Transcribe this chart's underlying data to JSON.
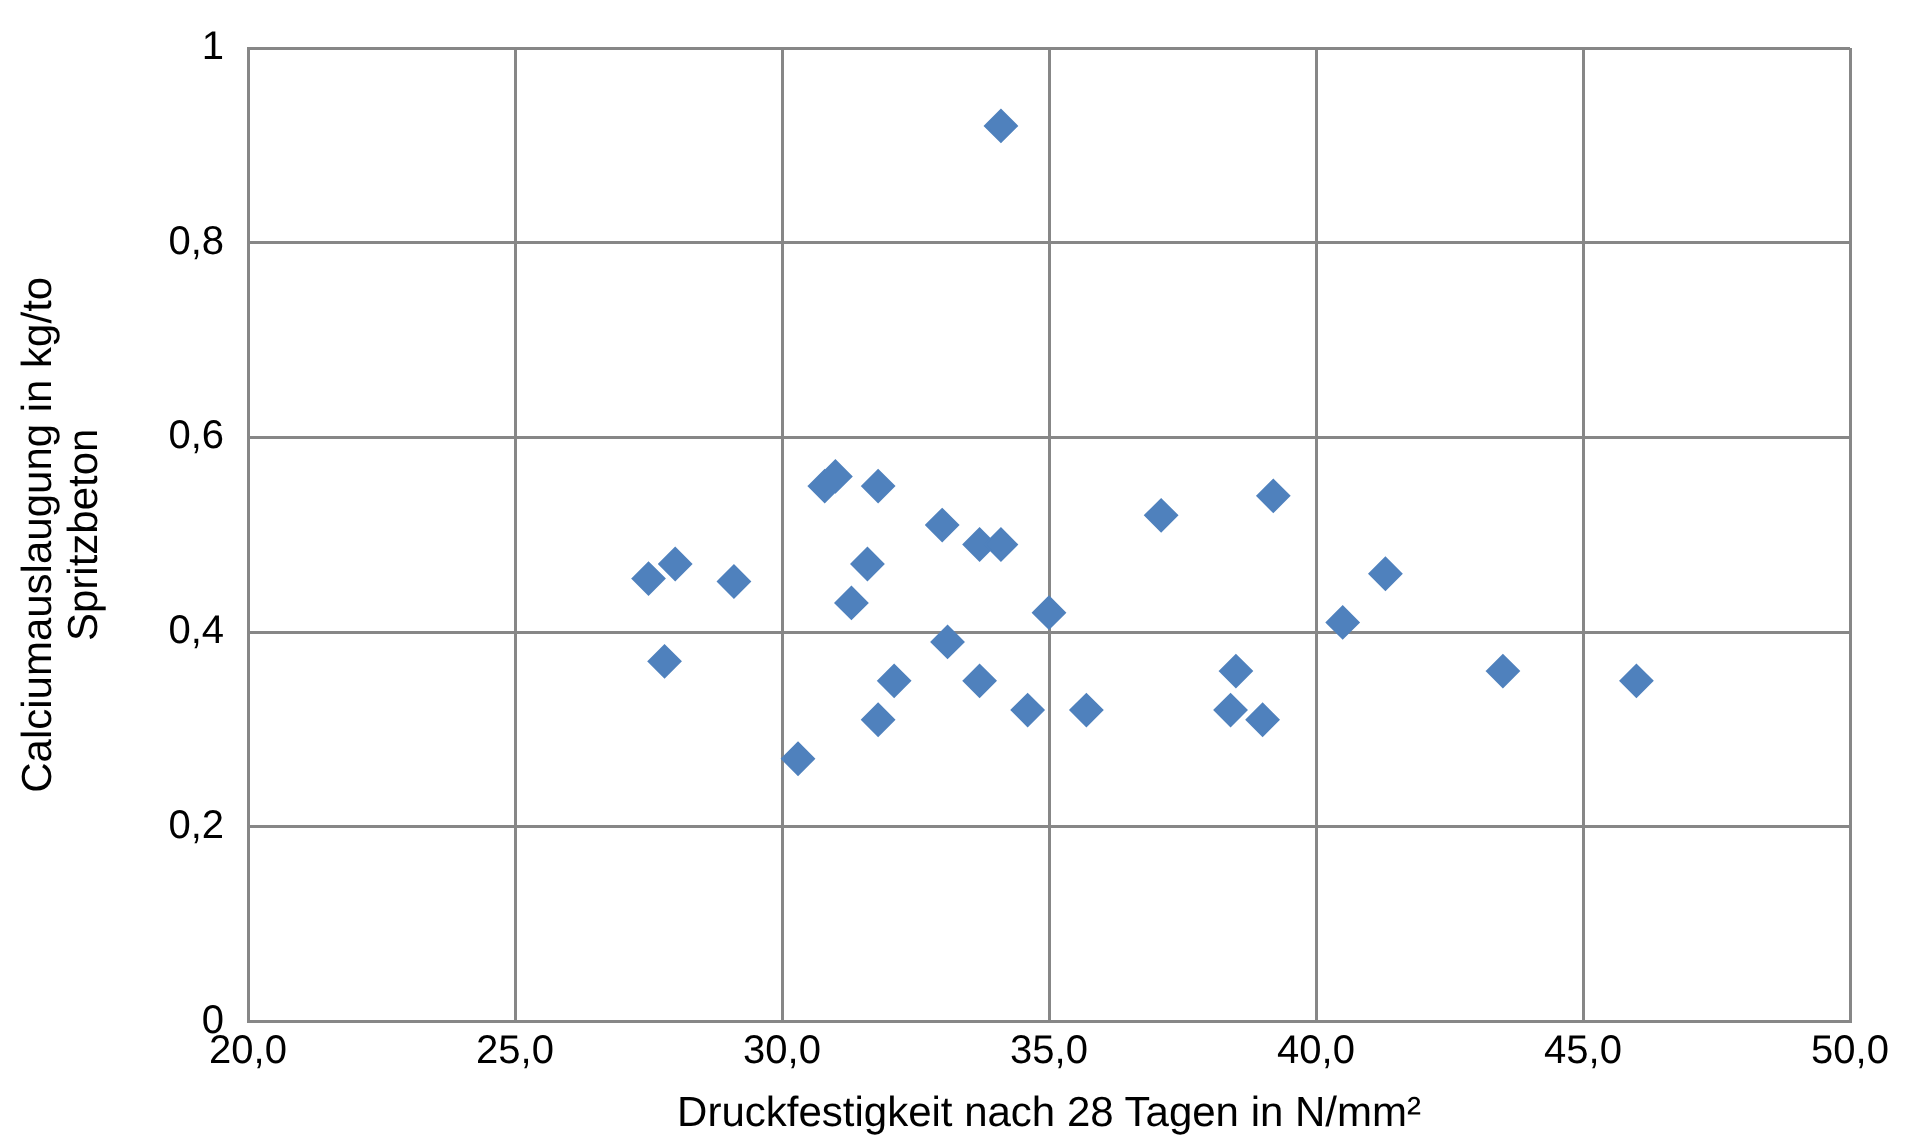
{
  "chart_data": {
    "type": "scatter",
    "xlabel": "Druckfestigkeit nach 28 Tagen in N/mm²",
    "ylabel": "Calciumauslaugung in kg/to Spritzbeton",
    "x": [
      27.5,
      28.0,
      27.8,
      29.1,
      30.3,
      30.8,
      31.0,
      31.8,
      31.3,
      31.6,
      31.8,
      32.1,
      33.0,
      33.1,
      33.7,
      34.1,
      33.7,
      34.1,
      34.6,
      35.0,
      35.7,
      37.1,
      38.5,
      38.4,
      39.0,
      39.2,
      40.5,
      41.3,
      43.5,
      46.0
    ],
    "series": [
      {
        "color": "#4f81bd",
        "values": [
          0.455,
          0.47,
          0.37,
          0.452,
          0.27,
          0.55,
          0.56,
          0.55,
          0.43,
          0.47,
          0.31,
          0.35,
          0.51,
          0.39,
          0.49,
          0.49,
          0.35,
          0.92,
          0.32,
          0.42,
          0.32,
          0.52,
          0.36,
          0.32,
          0.31,
          0.54,
          0.41,
          0.46,
          0.36,
          0.35
        ]
      }
    ],
    "xlim": [
      20,
      50
    ],
    "xticks": [
      {
        "value": 20,
        "label": "20,0"
      },
      {
        "value": 25,
        "label": "25,0"
      },
      {
        "value": 30,
        "label": "30,0"
      },
      {
        "value": 35,
        "label": "35,0"
      },
      {
        "value": 40,
        "label": "40,0"
      },
      {
        "value": 45,
        "label": "45,0"
      },
      {
        "value": 50,
        "label": "50,0"
      }
    ],
    "ylim": [
      0,
      1
    ],
    "yticks": [
      0,
      {
        "value": 0.2,
        "label": "0,2"
      },
      {
        "value": 0.4,
        "label": "0,4"
      },
      {
        "value": 0.6,
        "label": "0,6"
      },
      {
        "value": 0.8,
        "label": "0,8"
      },
      1
    ],
    "grid": true,
    "legend": false,
    "marker": "diamond"
  }
}
